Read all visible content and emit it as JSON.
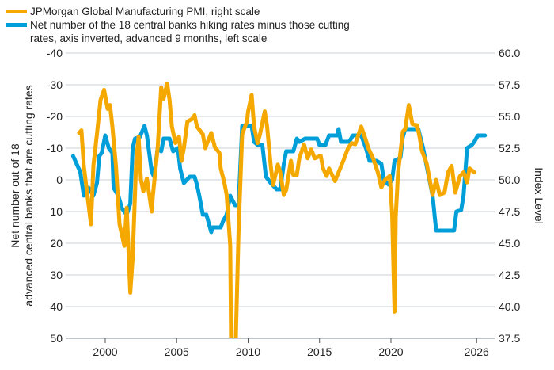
{
  "chart_data": {
    "type": "line",
    "title": "",
    "legend_placement": "top-left",
    "grid": true,
    "xlabel": "",
    "ylabel_left": "Net number out of 18 advanced central banks that are cutting rates",
    "ylabel_right": "Index Level",
    "x_ticks": [
      "2000",
      "2005",
      "2010",
      "2015",
      "2020",
      "2026"
    ],
    "y_left": {
      "range": [
        -40,
        50
      ],
      "inverted": true,
      "ticks": [
        "-40",
        "-30",
        "-20",
        "-10",
        "0",
        "10",
        "20",
        "30",
        "40",
        "50"
      ]
    },
    "y_right": {
      "range": [
        37.5,
        60
      ],
      "ticks": [
        "60.0",
        "57.5",
        "55.0",
        "52.5",
        "50.0",
        "47.5",
        "45.0",
        "42.5",
        "40.0",
        "37.5"
      ]
    },
    "series": [
      {
        "name": "Net number of the 18 central banks hiking rates minus those cutting rates, axis inverted, advanced 9 months, left scale",
        "axis": "left",
        "color": "#009FDA",
        "points": [
          [
            "1997-10",
            -7.5
          ],
          [
            "1998-01",
            -5
          ],
          [
            "1998-04",
            -2.5
          ],
          [
            "1998-07",
            5
          ],
          [
            "1998-11",
            2.5
          ],
          [
            "1999-03",
            5
          ],
          [
            "1999-06",
            1
          ],
          [
            "1999-08",
            -7.5
          ],
          [
            "1999-10",
            -8.5
          ],
          [
            "2000-01",
            -14
          ],
          [
            "2000-04",
            -10
          ],
          [
            "2000-07",
            -8.5
          ],
          [
            "2000-08",
            2.5
          ],
          [
            "2000-12",
            5
          ],
          [
            "2001-03",
            9
          ],
          [
            "2001-07",
            11
          ],
          [
            "2001-10",
            7.5
          ],
          [
            "2001-12",
            -10
          ],
          [
            "2002-02",
            -13
          ],
          [
            "2002-06",
            -13.5
          ],
          [
            "2002-10",
            -17
          ],
          [
            "2002-12",
            -14
          ],
          [
            "2003-04",
            -2.5
          ],
          [
            "2003-06",
            -1
          ],
          [
            "2003-09",
            -10
          ],
          [
            "2003-12",
            -9
          ],
          [
            "2004-02",
            -13
          ],
          [
            "2004-07",
            -13
          ],
          [
            "2004-10",
            -9
          ],
          [
            "2005-02",
            -10
          ],
          [
            "2005-04",
            -3.5
          ],
          [
            "2005-07",
            1
          ],
          [
            "2005-12",
            -1
          ],
          [
            "2006-04",
            -1
          ],
          [
            "2006-06",
            1.5
          ],
          [
            "2006-08",
            5
          ],
          [
            "2006-11",
            11
          ],
          [
            "2007-02",
            11
          ],
          [
            "2007-06",
            16.5
          ],
          [
            "2007-07",
            15
          ],
          [
            "2008-02",
            15
          ],
          [
            "2008-04",
            13
          ],
          [
            "2008-07",
            11
          ],
          [
            "2008-10",
            5
          ],
          [
            "2009-02",
            8
          ],
          [
            "2009-05",
            8
          ],
          [
            "2009-08",
            -17
          ],
          [
            "2009-12",
            -17
          ],
          [
            "2010-04",
            -17
          ],
          [
            "2010-06",
            -12
          ],
          [
            "2010-09",
            -11
          ],
          [
            "2011-01",
            -11
          ],
          [
            "2011-04",
            -1
          ],
          [
            "2011-08",
            1
          ],
          [
            "2012-01",
            3
          ],
          [
            "2012-04",
            3
          ],
          [
            "2012-07",
            -5
          ],
          [
            "2012-09",
            -9
          ],
          [
            "2013-03",
            -9
          ],
          [
            "2013-06",
            -13
          ],
          [
            "2013-08",
            -12
          ],
          [
            "2014-01",
            -13
          ],
          [
            "2014-11",
            -13
          ],
          [
            "2015-01",
            -11
          ],
          [
            "2015-06",
            -11
          ],
          [
            "2015-09",
            -14
          ],
          [
            "2016-04",
            -14
          ],
          [
            "2016-05",
            -16
          ],
          [
            "2016-07",
            -12
          ],
          [
            "2017-02",
            -12
          ],
          [
            "2017-05",
            -14
          ],
          [
            "2017-12",
            -14
          ],
          [
            "2018-04",
            -10
          ],
          [
            "2018-07",
            -6
          ],
          [
            "2019-01",
            -6
          ],
          [
            "2019-05",
            -5
          ],
          [
            "2019-07",
            0
          ],
          [
            "2019-11",
            1.5
          ],
          [
            "2020-02",
            0
          ],
          [
            "2020-04",
            -6
          ],
          [
            "2020-09",
            -7
          ],
          [
            "2020-11",
            -13.5
          ],
          [
            "2021-01",
            -16
          ],
          [
            "2021-12",
            -16
          ],
          [
            "2022-04",
            -10
          ],
          [
            "2022-08",
            -2.5
          ],
          [
            "2022-12",
            5
          ],
          [
            "2023-03",
            16
          ],
          [
            "2024-06",
            16
          ],
          [
            "2024-08",
            10
          ],
          [
            "2024-12",
            9.5
          ],
          [
            "2025-02",
            5
          ],
          [
            "2025-05",
            -10
          ],
          [
            "2025-09",
            -11
          ],
          [
            "2025-11",
            -12
          ],
          [
            "2026-02",
            -14
          ],
          [
            "2026-08",
            -14
          ]
        ]
      },
      {
        "name": "JPMorgan Global Manufacturing PMI, right scale",
        "axis": "right",
        "color": "#F5A800",
        "points": [
          [
            "1998-03",
            53.7
          ],
          [
            "1998-05",
            53.9
          ],
          [
            "1998-07",
            51.1
          ],
          [
            "1999-01",
            46.5
          ],
          [
            "1999-03",
            51.1
          ],
          [
            "1999-06",
            53.6
          ],
          [
            "1999-09",
            56.3
          ],
          [
            "1999-12",
            57.1
          ],
          [
            "2000-03",
            55.6
          ],
          [
            "2000-05",
            55.9
          ],
          [
            "2000-07",
            54.2
          ],
          [
            "2000-10",
            51.1
          ],
          [
            "2001-01",
            46.5
          ],
          [
            "2001-05",
            44.8
          ],
          [
            "2001-07",
            47.8
          ],
          [
            "2001-10",
            41.1
          ],
          [
            "2001-12",
            43.8
          ],
          [
            "2002-03",
            51.5
          ],
          [
            "2002-05",
            53.4
          ],
          [
            "2002-07",
            50.0
          ],
          [
            "2002-09",
            49.1
          ],
          [
            "2002-12",
            50.1
          ],
          [
            "2003-04",
            47.5
          ],
          [
            "2003-05",
            48.8
          ],
          [
            "2003-09",
            52.5
          ],
          [
            "2003-12",
            57.3
          ],
          [
            "2004-02",
            56.4
          ],
          [
            "2004-05",
            57.6
          ],
          [
            "2004-07",
            56.3
          ],
          [
            "2004-09",
            54.2
          ],
          [
            "2004-12",
            52.9
          ],
          [
            "2005-03",
            53.4
          ],
          [
            "2005-05",
            51.5
          ],
          [
            "2005-07",
            52.5
          ],
          [
            "2005-10",
            54.6
          ],
          [
            "2006-02",
            54.8
          ],
          [
            "2006-04",
            55.1
          ],
          [
            "2006-06",
            54.2
          ],
          [
            "2006-11",
            53.6
          ],
          [
            "2007-01",
            52.5
          ],
          [
            "2007-06",
            53.7
          ],
          [
            "2007-09",
            52.6
          ],
          [
            "2008-01",
            52.1
          ],
          [
            "2008-02",
            50.9
          ],
          [
            "2008-05",
            49.8
          ],
          [
            "2008-07",
            48.8
          ],
          [
            "2008-10",
            44.8
          ],
          [
            "2008-11",
            33.7
          ],
          [
            "2009-02",
            34.9
          ],
          [
            "2009-05",
            45.9
          ],
          [
            "2009-08",
            53.6
          ],
          [
            "2009-12",
            54.6
          ],
          [
            "2010-01",
            55.4
          ],
          [
            "2010-04",
            56.7
          ],
          [
            "2010-06",
            54.2
          ],
          [
            "2010-09",
            52.9
          ],
          [
            "2010-11",
            53.6
          ],
          [
            "2011-03",
            55.4
          ],
          [
            "2011-05",
            54.2
          ],
          [
            "2011-08",
            51.1
          ],
          [
            "2011-10",
            49.6
          ],
          [
            "2012-02",
            51.2
          ],
          [
            "2012-04",
            50.6
          ],
          [
            "2012-07",
            48.8
          ],
          [
            "2012-09",
            49.2
          ],
          [
            "2013-01",
            51.5
          ],
          [
            "2013-03",
            50.4
          ],
          [
            "2013-06",
            50.4
          ],
          [
            "2013-08",
            51.7
          ],
          [
            "2013-12",
            52.8
          ],
          [
            "2014-03",
            51.7
          ],
          [
            "2014-06",
            52.4
          ],
          [
            "2014-09",
            51.7
          ],
          [
            "2015-02",
            51.9
          ],
          [
            "2015-04",
            50.9
          ],
          [
            "2015-07",
            50.3
          ],
          [
            "2015-09",
            50.9
          ],
          [
            "2016-02",
            49.9
          ],
          [
            "2016-05",
            50.6
          ],
          [
            "2016-09",
            51.5
          ],
          [
            "2017-01",
            52.5
          ],
          [
            "2017-04",
            52.9
          ],
          [
            "2017-07",
            52.8
          ],
          [
            "2017-12",
            54.2
          ],
          [
            "2018-03",
            53.4
          ],
          [
            "2018-06",
            52.5
          ],
          [
            "2018-10",
            51.7
          ],
          [
            "2019-02",
            50.6
          ],
          [
            "2019-05",
            49.4
          ],
          [
            "2019-08",
            50.0
          ],
          [
            "2019-12",
            50.3
          ],
          [
            "2020-02",
            47.3
          ],
          [
            "2020-04",
            39.6
          ],
          [
            "2020-05",
            47.1
          ],
          [
            "2020-07",
            50.6
          ],
          [
            "2020-11",
            53.8
          ],
          [
            "2021-01",
            54.0
          ],
          [
            "2021-04",
            55.9
          ],
          [
            "2021-07",
            54.4
          ],
          [
            "2021-11",
            54.3
          ],
          [
            "2022-01",
            53.4
          ],
          [
            "2022-03",
            52.3
          ],
          [
            "2022-07",
            51.3
          ],
          [
            "2022-10",
            49.8
          ],
          [
            "2022-12",
            48.8
          ],
          [
            "2023-03",
            50.0
          ],
          [
            "2023-06",
            48.8
          ],
          [
            "2023-10",
            49.0
          ],
          [
            "2024-01",
            50.6
          ],
          [
            "2024-04",
            51.1
          ],
          [
            "2024-07",
            49.0
          ],
          [
            "2024-11",
            50.3
          ],
          [
            "2025-02",
            50.6
          ],
          [
            "2025-05",
            49.8
          ],
          [
            "2025-07",
            50.9
          ],
          [
            "2025-11",
            50.6
          ]
        ]
      }
    ]
  }
}
